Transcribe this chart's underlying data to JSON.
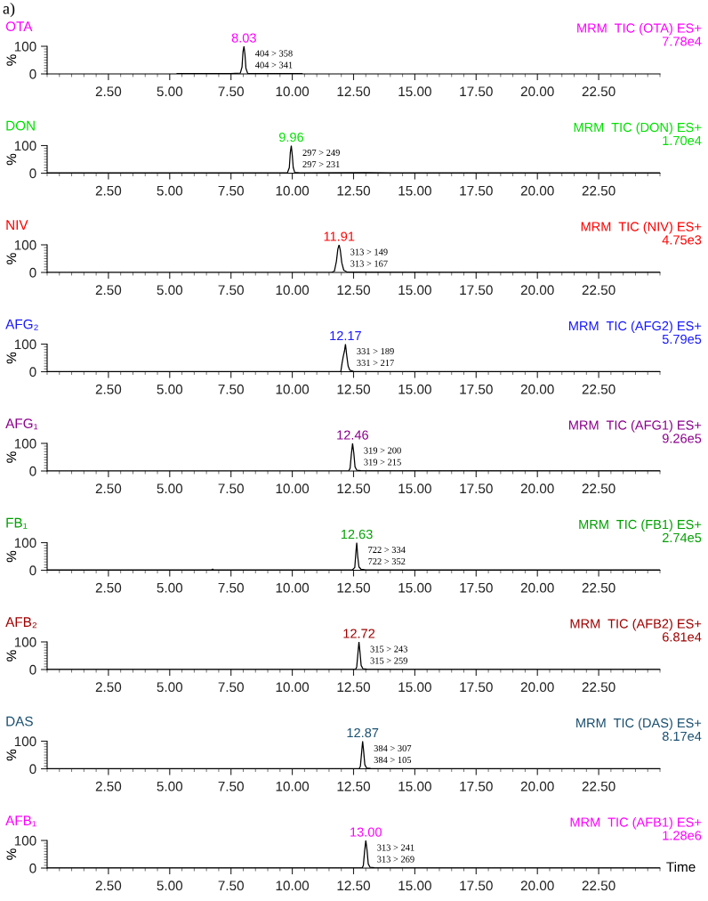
{
  "chart_data": [
    {
      "type": "line",
      "title": "OTA",
      "color": "#ff00ff",
      "ylabel": "%",
      "xlim": [
        0,
        25
      ],
      "ylim": [
        0,
        100
      ],
      "xticks": [
        {
          "value": 2.5,
          "label": "2.50"
        },
        {
          "value": 5,
          "label": "5.00"
        },
        {
          "value": 7.5,
          "label": "7.50"
        },
        {
          "value": 10,
          "label": "10.00"
        },
        {
          "value": 12.5,
          "label": "12.50"
        },
        {
          "value": 15,
          "label": "15.00"
        },
        {
          "value": 17.5,
          "label": "17.50"
        },
        {
          "value": 20,
          "label": "20.00"
        },
        {
          "value": 22.5,
          "label": "22.50"
        }
      ],
      "yticks": [
        0,
        100
      ],
      "grid": false,
      "legend": false,
      "series": [
        {
          "color": "#000000",
          "x": [
            5.3,
            7.5,
            7.88,
            7.95,
            7.99,
            8.03,
            8.07,
            8.11,
            8.18,
            9.0,
            10.4
          ],
          "values": [
            1,
            1,
            3,
            25,
            80,
            100,
            70,
            20,
            2,
            1,
            1
          ]
        }
      ],
      "annotations": [
        {
          "text": "8.03",
          "x": 8.03,
          "y": 100
        },
        "404 > 358\n404 > 341",
        "MRM  TIC (OTA) ES+",
        "7.78e4",
        "a)"
      ]
    },
    {
      "type": "line",
      "title": "DON",
      "color": "#00e000",
      "ylabel": "%",
      "xlim": [
        0,
        25
      ],
      "ylim": [
        0,
        100
      ],
      "xticks": [
        {
          "value": 2.5,
          "label": "2.50"
        },
        {
          "value": 5,
          "label": "5.00"
        },
        {
          "value": 7.5,
          "label": "7.50"
        },
        {
          "value": 10,
          "label": "10.00"
        },
        {
          "value": 12.5,
          "label": "12.50"
        },
        {
          "value": 15,
          "label": "15.00"
        },
        {
          "value": 17.5,
          "label": "17.50"
        },
        {
          "value": 20,
          "label": "20.00"
        },
        {
          "value": 22.5,
          "label": "22.50"
        }
      ],
      "yticks": [
        0,
        100
      ],
      "grid": false,
      "legend": false,
      "series": [
        {
          "color": "#000000",
          "x": [
            0,
            5,
            9.8,
            9.88,
            9.92,
            9.96,
            10.0,
            10.04,
            10.1,
            10.3,
            13,
            14,
            25
          ],
          "values": [
            1,
            1,
            1,
            20,
            75,
            100,
            65,
            20,
            3,
            1,
            2,
            1,
            1
          ]
        }
      ],
      "annotations": [
        {
          "text": "9.96",
          "x": 9.96,
          "y": 100
        },
        "297 > 249\n297 > 231",
        "MRM  TIC (DON) ES+",
        "1.70e4"
      ]
    },
    {
      "type": "line",
      "title": "NIV",
      "color": "#ff0000",
      "ylabel": "%",
      "xlim": [
        0,
        25
      ],
      "ylim": [
        0,
        100
      ],
      "xticks": [
        {
          "value": 2.5,
          "label": "2.50"
        },
        {
          "value": 5,
          "label": "5.00"
        },
        {
          "value": 7.5,
          "label": "7.50"
        },
        {
          "value": 10,
          "label": "10.00"
        },
        {
          "value": 12.5,
          "label": "12.50"
        },
        {
          "value": 15,
          "label": "15.00"
        },
        {
          "value": 17.5,
          "label": "17.50"
        },
        {
          "value": 20,
          "label": "20.00"
        },
        {
          "value": 22.5,
          "label": "22.50"
        }
      ],
      "yticks": [
        0,
        100
      ],
      "grid": false,
      "legend": false,
      "series": [
        {
          "color": "#000000",
          "x": [
            0,
            11.6,
            11.72,
            11.8,
            11.86,
            11.91,
            11.96,
            12.02,
            12.1,
            12.25,
            25
          ],
          "values": [
            0,
            0,
            5,
            40,
            85,
            100,
            80,
            35,
            8,
            1,
            0
          ]
        }
      ],
      "annotations": [
        {
          "text": "11.91",
          "x": 11.91,
          "y": 100
        },
        "313 > 149\n313 > 167",
        "MRM  TIC (NIV) ES+",
        "4.75e3"
      ]
    },
    {
      "type": "line",
      "title": "AFG₂",
      "color": "#1a1aff",
      "ylabel": "%",
      "xlim": [
        0,
        25
      ],
      "ylim": [
        0,
        100
      ],
      "xticks": [
        {
          "value": 2.5,
          "label": "2.50"
        },
        {
          "value": 5,
          "label": "5.00"
        },
        {
          "value": 7.5,
          "label": "7.50"
        },
        {
          "value": 10,
          "label": "10.00"
        },
        {
          "value": 12.5,
          "label": "12.50"
        },
        {
          "value": 15,
          "label": "15.00"
        },
        {
          "value": 17.5,
          "label": "17.50"
        },
        {
          "value": 20,
          "label": "20.00"
        },
        {
          "value": 22.5,
          "label": "22.50"
        }
      ],
      "yticks": [
        0,
        100
      ],
      "grid": false,
      "legend": false,
      "series": [
        {
          "color": "#000000",
          "x": [
            0,
            11.98,
            12.03,
            12.08,
            12.13,
            12.17,
            12.22,
            12.28,
            12.35,
            12.5,
            25
          ],
          "values": [
            0,
            0,
            30,
            55,
            75,
            100,
            60,
            20,
            5,
            1,
            0
          ]
        }
      ],
      "annotations": [
        {
          "text": "12.17",
          "x": 12.17,
          "y": 100
        },
        "331 > 189\n331 > 217",
        "MRM  TIC (AFG2) ES+",
        "5.79e5"
      ]
    },
    {
      "type": "line",
      "title": "AFG₁",
      "color": "#8b008b",
      "ylabel": "%",
      "xlim": [
        0,
        25
      ],
      "ylim": [
        0,
        100
      ],
      "xticks": [
        {
          "value": 2.5,
          "label": "2.50"
        },
        {
          "value": 5,
          "label": "5.00"
        },
        {
          "value": 7.5,
          "label": "7.50"
        },
        {
          "value": 10,
          "label": "10.00"
        },
        {
          "value": 12.5,
          "label": "12.50"
        },
        {
          "value": 15,
          "label": "15.00"
        },
        {
          "value": 17.5,
          "label": "17.50"
        },
        {
          "value": 20,
          "label": "20.00"
        },
        {
          "value": 22.5,
          "label": "22.50"
        }
      ],
      "yticks": [
        0,
        100
      ],
      "grid": false,
      "legend": false,
      "series": [
        {
          "color": "#000000",
          "x": [
            0,
            12.3,
            12.36,
            12.41,
            12.46,
            12.51,
            12.56,
            12.63,
            12.8,
            25
          ],
          "values": [
            0,
            0,
            10,
            60,
            100,
            65,
            15,
            3,
            1,
            0
          ]
        }
      ],
      "annotations": [
        {
          "text": "12.46",
          "x": 12.46,
          "y": 100
        },
        "319 > 200\n319 > 215",
        "MRM  TIC (AFG1) ES+",
        "9.26e5"
      ]
    },
    {
      "type": "line",
      "title": "FB₁",
      "color": "#00a000",
      "ylabel": "%",
      "xlim": [
        0,
        25
      ],
      "ylim": [
        0,
        100
      ],
      "xticks": [
        {
          "value": 2.5,
          "label": "2.50"
        },
        {
          "value": 5,
          "label": "5.00"
        },
        {
          "value": 7.5,
          "label": "7.50"
        },
        {
          "value": 10,
          "label": "10.00"
        },
        {
          "value": 12.5,
          "label": "12.50"
        },
        {
          "value": 15,
          "label": "15.00"
        },
        {
          "value": 17.5,
          "label": "17.50"
        },
        {
          "value": 20,
          "label": "20.00"
        },
        {
          "value": 22.5,
          "label": "22.50"
        }
      ],
      "yticks": [
        0,
        100
      ],
      "grid": false,
      "legend": false,
      "series": [
        {
          "color": "#000000",
          "x": [
            0,
            6.7,
            6.75,
            6.8,
            12.45,
            12.55,
            12.6,
            12.63,
            12.67,
            12.72,
            12.8,
            13.0,
            25
          ],
          "values": [
            1,
            1,
            4,
            1,
            1,
            10,
            70,
            100,
            50,
            12,
            4,
            1,
            1
          ]
        }
      ],
      "annotations": [
        {
          "text": "12.63",
          "x": 12.63,
          "y": 100
        },
        "722 > 334\n722 > 352",
        "MRM  TIC (FB1) ES+",
        "2.74e5"
      ]
    },
    {
      "type": "line",
      "title": "AFB₂",
      "color": "#a00000",
      "ylabel": "%",
      "xlim": [
        0,
        25
      ],
      "ylim": [
        0,
        100
      ],
      "xticks": [
        {
          "value": 2.5,
          "label": "2.50"
        },
        {
          "value": 5,
          "label": "5.00"
        },
        {
          "value": 7.5,
          "label": "7.50"
        },
        {
          "value": 10,
          "label": "10.00"
        },
        {
          "value": 12.5,
          "label": "12.50"
        },
        {
          "value": 15,
          "label": "15.00"
        },
        {
          "value": 17.5,
          "label": "17.50"
        },
        {
          "value": 20,
          "label": "20.00"
        },
        {
          "value": 22.5,
          "label": "22.50"
        }
      ],
      "yticks": [
        0,
        100
      ],
      "grid": false,
      "legend": false,
      "series": [
        {
          "color": "#000000",
          "x": [
            0,
            12.58,
            12.63,
            12.68,
            12.72,
            12.76,
            12.81,
            12.88,
            13.05,
            25
          ],
          "values": [
            0,
            0,
            10,
            60,
            100,
            65,
            15,
            3,
            1,
            0
          ]
        }
      ],
      "annotations": [
        {
          "text": "12.72",
          "x": 12.72,
          "y": 100
        },
        "315 > 243\n315 > 259",
        "MRM  TIC (AFB2) ES+",
        "6.81e4"
      ]
    },
    {
      "type": "line",
      "title": "DAS",
      "color": "#1a5070",
      "ylabel": "%",
      "xlim": [
        0,
        25
      ],
      "ylim": [
        0,
        100
      ],
      "xticks": [
        {
          "value": 2.5,
          "label": "2.50"
        },
        {
          "value": 5,
          "label": "5.00"
        },
        {
          "value": 7.5,
          "label": "7.50"
        },
        {
          "value": 10,
          "label": "10.00"
        },
        {
          "value": 12.5,
          "label": "12.50"
        },
        {
          "value": 15,
          "label": "15.00"
        },
        {
          "value": 17.5,
          "label": "17.50"
        },
        {
          "value": 20,
          "label": "20.00"
        },
        {
          "value": 22.5,
          "label": "22.50"
        }
      ],
      "yticks": [
        0,
        100
      ],
      "grid": false,
      "legend": false,
      "series": [
        {
          "color": "#000000",
          "x": [
            0,
            12.73,
            12.78,
            12.83,
            12.87,
            12.91,
            12.96,
            13.03,
            13.2,
            25
          ],
          "values": [
            0,
            0,
            10,
            60,
            100,
            65,
            15,
            3,
            1,
            0
          ]
        }
      ],
      "annotations": [
        {
          "text": "12.87",
          "x": 12.87,
          "y": 100
        },
        "384 > 307\n384 > 105",
        "MRM  TIC (DAS) ES+",
        "8.17e4"
      ]
    },
    {
      "type": "line",
      "title": "AFB₁",
      "color": "#ff00ff",
      "ylabel": "%",
      "xlabel": "Time",
      "xlim": [
        0,
        25
      ],
      "ylim": [
        0,
        100
      ],
      "xticks": [
        {
          "value": 2.5,
          "label": "2.50"
        },
        {
          "value": 5,
          "label": "5.00"
        },
        {
          "value": 7.5,
          "label": "7.50"
        },
        {
          "value": 10,
          "label": "10.00"
        },
        {
          "value": 12.5,
          "label": "12.50"
        },
        {
          "value": 15,
          "label": "15.00"
        },
        {
          "value": 17.5,
          "label": "17.50"
        },
        {
          "value": 20,
          "label": "20.00"
        },
        {
          "value": 22.5,
          "label": "22.50"
        }
      ],
      "yticks": [
        0,
        100
      ],
      "grid": false,
      "legend": false,
      "series": [
        {
          "color": "#000000",
          "x": [
            0,
            12.85,
            12.9,
            12.95,
            13.0,
            13.05,
            13.1,
            13.17,
            13.35,
            25
          ],
          "values": [
            0,
            0,
            10,
            60,
            100,
            65,
            15,
            3,
            1,
            0
          ]
        }
      ],
      "annotations": [
        {
          "text": "13.00",
          "x": 13.0,
          "y": 100
        },
        "313 > 241\n313 > 269",
        "MRM  TIC (AFB1) ES+",
        "1.28e6"
      ]
    }
  ]
}
